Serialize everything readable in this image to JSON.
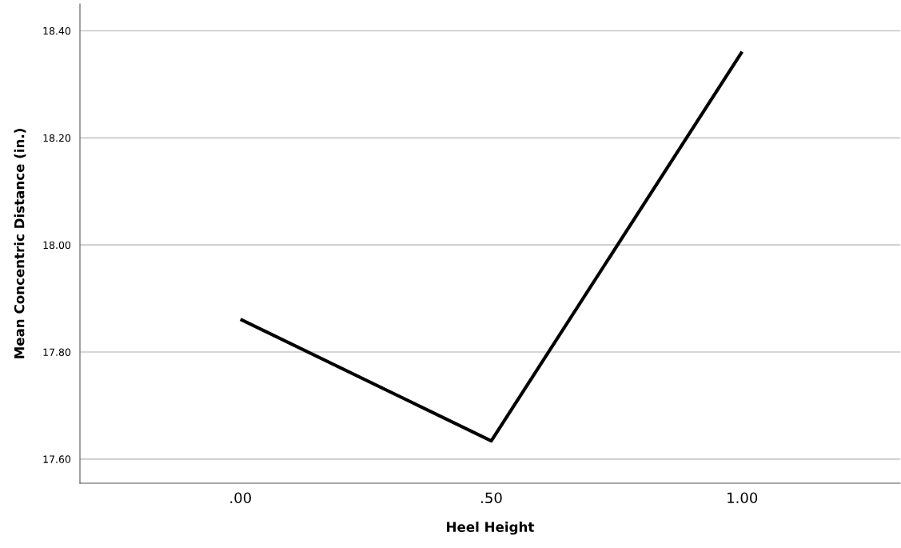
{
  "chart_data": {
    "type": "line",
    "xlabel": "Heel Height",
    "ylabel": "Mean Concentric Distance (in.)",
    "categories": [
      ".00",
      ".50",
      "1.00"
    ],
    "series": [
      {
        "color": "#000000",
        "values": [
          17.861,
          17.634,
          18.361
        ]
      }
    ],
    "ylim": [
      17.555,
      18.45
    ],
    "yticks": [
      {
        "value": 17.6,
        "label": "17.60"
      },
      {
        "value": 17.8,
        "label": "17.80"
      },
      {
        "value": 18.0,
        "label": "18.00"
      },
      {
        "value": 18.2,
        "label": "18.20"
      },
      {
        "value": 18.4,
        "label": "18.40"
      }
    ],
    "grid": "y",
    "marker": "none",
    "line_style": "solid"
  }
}
